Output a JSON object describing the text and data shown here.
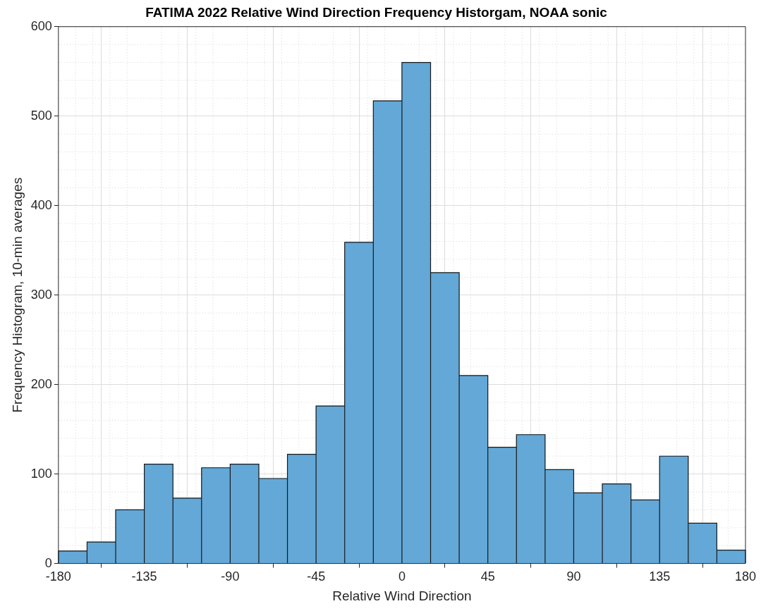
{
  "chart_data": {
    "type": "histogram",
    "title": "FATIMA 2022 Relative Wind Direction Frequency Historgam, NOAA sonic",
    "xlabel": "Relative Wind Direction",
    "ylabel": "Frequency Histogram, 10-min averages",
    "bins": [
      -180,
      -165,
      -150,
      -135,
      -120,
      -105,
      -90,
      -75,
      -60,
      -45,
      -30,
      -15,
      0,
      15,
      30,
      45,
      60,
      75,
      90,
      105,
      120,
      135,
      150,
      165,
      180
    ],
    "values": [
      14,
      24,
      60,
      111,
      73,
      107,
      111,
      95,
      122,
      176,
      359,
      517,
      560,
      325,
      210,
      130,
      144,
      105,
      79,
      89,
      71,
      120,
      45,
      15
    ],
    "color": "#63a8d7",
    "xlim": [
      -180,
      180
    ],
    "xticks": [
      -180,
      -135,
      -90,
      -45,
      0,
      45,
      90,
      135,
      180
    ],
    "ylim": [
      0,
      600
    ],
    "yticks": [
      0,
      100,
      200,
      300,
      400,
      500,
      600
    ],
    "grid": true
  }
}
